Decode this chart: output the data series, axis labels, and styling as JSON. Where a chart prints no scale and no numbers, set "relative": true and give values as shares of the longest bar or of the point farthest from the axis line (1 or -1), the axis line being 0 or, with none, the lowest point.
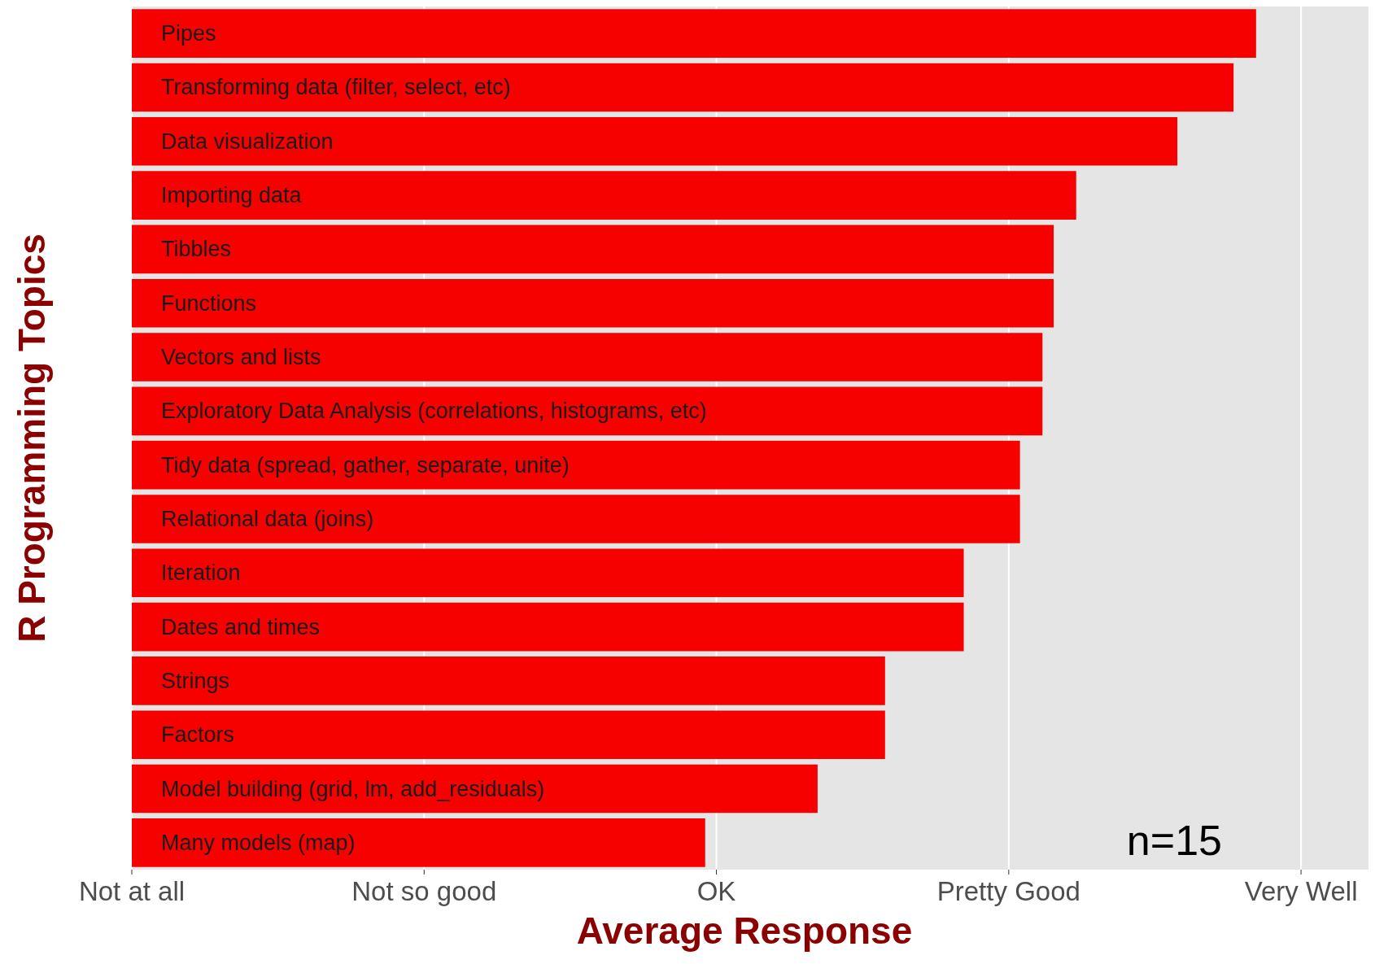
{
  "chart_data": {
    "type": "bar",
    "orientation": "horizontal",
    "relative": true,
    "xlabel": "Average Response",
    "ylabel": "R Programming Topics",
    "categories": [
      "Pipes",
      "Transforming data (filter, select, etc)",
      "Data visualization",
      "Importing data",
      "Tibbles",
      "Functions",
      "Vectors and lists",
      "Exploratory Data Analysis (correlations, histograms, etc)",
      "Tidy data (spread, gather, separate, unite)",
      "Relational data (joins)",
      "Iteration",
      "Dates and times",
      "Strings",
      "Factors",
      "Model building (grid, lm, add_residuals)",
      "Many models (map)"
    ],
    "values": [
      1,
      0.98,
      0.93,
      0.84,
      0.82,
      0.82,
      0.81,
      0.81,
      0.79,
      0.79,
      0.74,
      0.74,
      0.67,
      0.67,
      0.61,
      0.51
    ],
    "color": "#f70000",
    "grid": "x",
    "annotations": [
      "Not at all",
      "Not so good",
      "OK",
      "Pretty Good",
      "Very Well",
      "n=15"
    ]
  }
}
